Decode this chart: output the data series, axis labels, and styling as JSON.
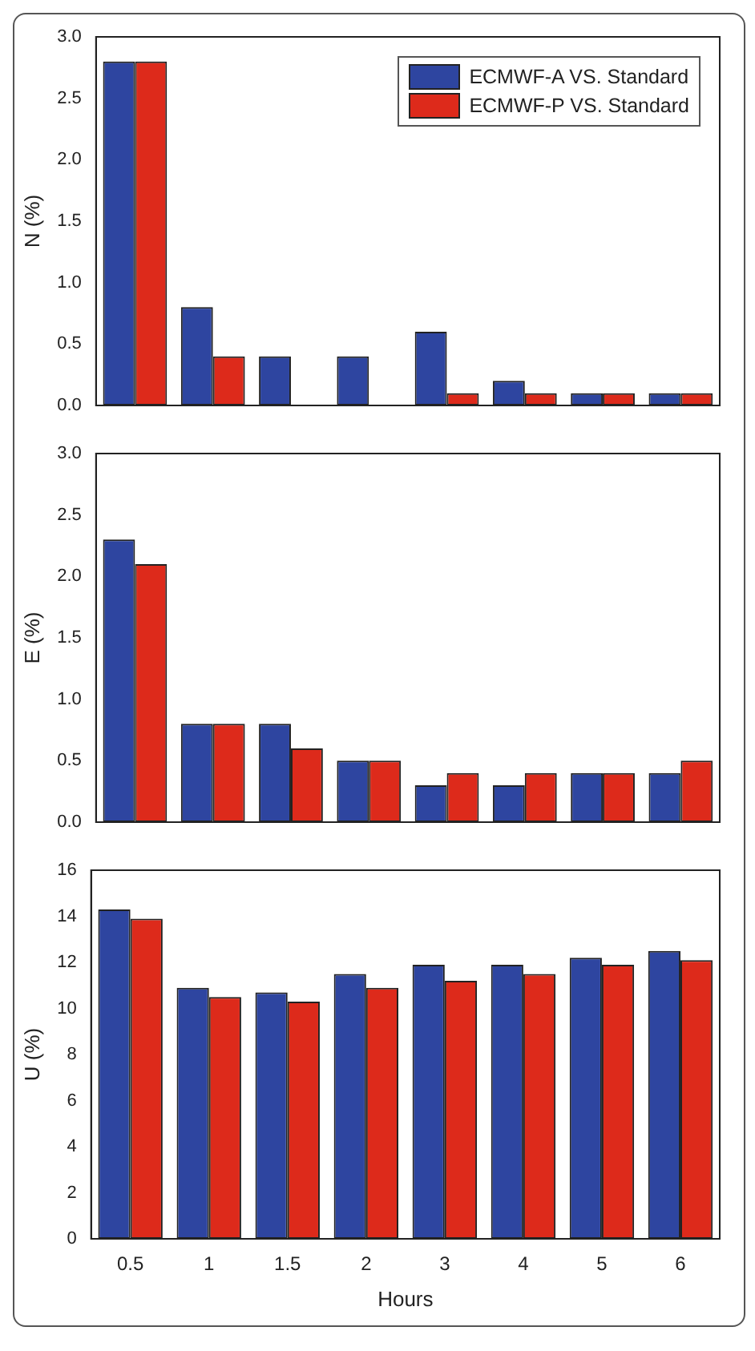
{
  "chart_data": [
    {
      "type": "bar",
      "ylabel": "N (%)",
      "categories": [
        "0.5",
        "1",
        "1.5",
        "2",
        "3",
        "4",
        "5",
        "6"
      ],
      "ylim": [
        0,
        3
      ],
      "yticks": [
        {
          "value": 0,
          "label": "0.0"
        },
        {
          "value": 0.5,
          "label": "0.5"
        },
        {
          "value": 1,
          "label": "1.0"
        },
        {
          "value": 1.5,
          "label": "1.5"
        },
        {
          "value": 2,
          "label": "2.0"
        },
        {
          "value": 2.5,
          "label": "2.5"
        },
        {
          "value": 3,
          "label": "3.0"
        }
      ],
      "tick_labels": "y",
      "legend": "top right",
      "grid": false,
      "series": [
        {
          "name": "ECMWF-A VS. Standard",
          "color": "#2e45a0",
          "values": [
            2.8,
            0.8,
            0.4,
            0.4,
            0.6,
            0.2,
            0.1,
            0.1
          ]
        },
        {
          "name": "ECMWF-P VS. Standard",
          "color": "#dd2a1b",
          "values": [
            2.8,
            0.4,
            0,
            0,
            0.1,
            0.1,
            0.1,
            0.1
          ]
        }
      ]
    },
    {
      "type": "bar",
      "ylabel": "E (%)",
      "categories": [
        "0.5",
        "1",
        "1.5",
        "2",
        "3",
        "4",
        "5",
        "6"
      ],
      "ylim": [
        0,
        3
      ],
      "yticks": [
        {
          "value": 0,
          "label": "0.0"
        },
        {
          "value": 0.5,
          "label": "0.5"
        },
        {
          "value": 1,
          "label": "1.0"
        },
        {
          "value": 1.5,
          "label": "1.5"
        },
        {
          "value": 2,
          "label": "2.0"
        },
        {
          "value": 2.5,
          "label": "2.5"
        },
        {
          "value": 3,
          "label": "3.0"
        }
      ],
      "tick_labels": "y",
      "grid": false,
      "series": [
        {
          "color": "#2e45a0",
          "values": [
            2.3,
            0.8,
            0.8,
            0.5,
            0.3,
            0.3,
            0.4,
            0.4
          ]
        },
        {
          "color": "#dd2a1b",
          "values": [
            2.1,
            0.8,
            0.6,
            0.5,
            0.4,
            0.4,
            0.4,
            0.5
          ]
        }
      ]
    },
    {
      "type": "bar",
      "ylabel": "U (%)",
      "xlabel": "Hours",
      "categories": [
        "0.5",
        "1",
        "1.5",
        "2",
        "3",
        "4",
        "5",
        "6"
      ],
      "ylim": [
        0,
        16
      ],
      "yticks": [
        0,
        2,
        4,
        6,
        8,
        10,
        12,
        14,
        16
      ],
      "grid": false,
      "series": [
        {
          "color": "#2e45a0",
          "values": [
            14.3,
            10.9,
            10.7,
            11.5,
            11.9,
            11.9,
            12.2,
            12.5
          ]
        },
        {
          "color": "#dd2a1b",
          "values": [
            13.9,
            10.5,
            10.3,
            10.9,
            11.2,
            11.5,
            11.9,
            12.1
          ]
        }
      ]
    }
  ]
}
